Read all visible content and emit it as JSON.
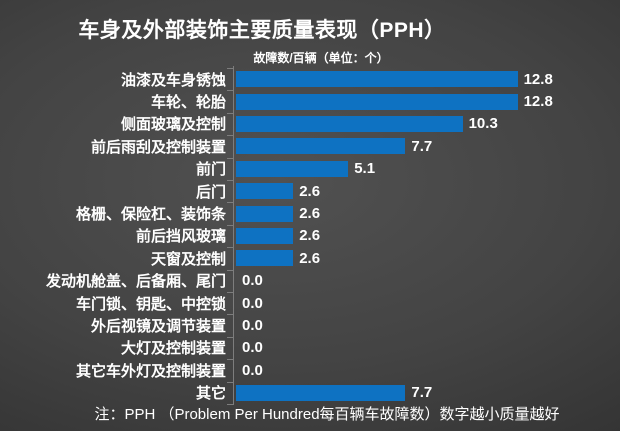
{
  "title": "车身及外部装饰主要质量表现（PPH）",
  "subtitle": "故障数/百辆（单位：个）",
  "note": "注：PPH （Problem Per Hundred每百辆车故障数）数字越小质量越好",
  "colors": {
    "bar": "#0e72c2",
    "background_center": "#4e4e4e",
    "background_edge": "#242424",
    "text": "#ffffff",
    "axis": "#7d7d7d"
  },
  "chart_data": {
    "type": "bar",
    "orientation": "horizontal",
    "title": "车身及外部装饰主要质量表现（PPH）",
    "subtitle": "故障数/百辆（单位：个）",
    "xlabel": "",
    "ylabel": "",
    "xlim": [
      0,
      13.5
    ],
    "grid": false,
    "legend": false,
    "value_labels": true,
    "categories": [
      "油漆及车身锈蚀",
      "车轮、轮胎",
      "侧面玻璃及控制",
      "前后雨刮及控制装置",
      "前门",
      "后门",
      "格栅、保险杠、装饰条",
      "前后挡风玻璃",
      "天窗及控制",
      "发动机舱盖、后备厢、尾门",
      "车门锁、钥匙、中控锁",
      "外后视镜及调节装置",
      "大灯及控制装置",
      "其它车外灯及控制装置",
      "其它"
    ],
    "values": [
      12.8,
      12.8,
      10.3,
      7.7,
      5.1,
      2.6,
      2.6,
      2.6,
      2.6,
      0.0,
      0.0,
      0.0,
      0.0,
      0.0,
      7.7
    ]
  }
}
